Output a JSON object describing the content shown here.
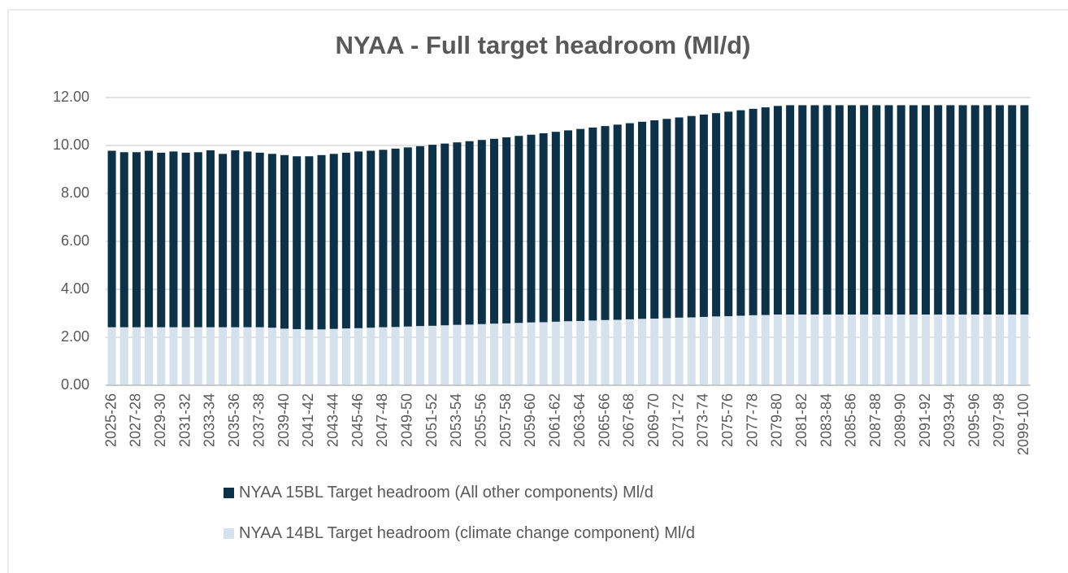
{
  "chart_data": {
    "type": "bar",
    "stacked": true,
    "title": "NYAA - Full target headroom (Ml/d)",
    "categories": [
      "2025-26",
      null,
      "2027-28",
      null,
      "2029-30",
      null,
      "2031-32",
      null,
      "2033-34",
      null,
      "2035-36",
      null,
      "2037-38",
      null,
      "2039-40",
      null,
      "2041-42",
      null,
      "2043-44",
      null,
      "2045-46",
      null,
      "2047-48",
      null,
      "2049-50",
      null,
      "2051-52",
      null,
      "2053-54",
      null,
      "2055-56",
      null,
      "2057-58",
      null,
      "2059-60",
      null,
      "2061-62",
      null,
      "2063-64",
      null,
      "2065-66",
      null,
      "2067-68",
      null,
      "2069-70",
      null,
      "2071-72",
      null,
      "2073-74",
      null,
      "2075-76",
      null,
      "2077-78",
      null,
      "2079-80",
      null,
      "2081-82",
      null,
      "2083-84",
      null,
      "2085-86",
      null,
      "2087-88",
      null,
      "2089-90",
      null,
      "2091-92",
      null,
      "2093-94",
      null,
      "2095-96",
      null,
      "2097-98",
      null,
      "2099-100"
    ],
    "series": [
      {
        "name": "NYAA 14BL Target headroom (climate change component) Ml/d",
        "color": "#d5e1ed",
        "values": [
          2.42,
          2.42,
          2.42,
          2.42,
          2.42,
          2.42,
          2.42,
          2.42,
          2.42,
          2.42,
          2.42,
          2.42,
          2.42,
          2.4,
          2.36,
          2.34,
          2.32,
          2.33,
          2.35,
          2.37,
          2.38,
          2.4,
          2.42,
          2.43,
          2.45,
          2.47,
          2.48,
          2.5,
          2.52,
          2.53,
          2.55,
          2.57,
          2.58,
          2.6,
          2.62,
          2.63,
          2.65,
          2.67,
          2.68,
          2.7,
          2.72,
          2.73,
          2.75,
          2.77,
          2.78,
          2.8,
          2.82,
          2.83,
          2.85,
          2.87,
          2.88,
          2.9,
          2.92,
          2.93,
          2.95,
          2.95,
          2.95,
          2.95,
          2.95,
          2.95,
          2.95,
          2.95,
          2.95,
          2.95,
          2.95,
          2.95,
          2.95,
          2.95,
          2.95,
          2.95,
          2.95,
          2.95,
          2.95,
          2.95,
          2.95
        ]
      },
      {
        "name": "NYAA 15BL Target headroom (All other components) Ml/d",
        "color": "#0d3247",
        "values": [
          7.36,
          7.3,
          7.3,
          7.36,
          7.28,
          7.33,
          7.28,
          7.3,
          7.38,
          7.23,
          7.38,
          7.33,
          7.28,
          7.25,
          7.24,
          7.21,
          7.23,
          7.27,
          7.3,
          7.33,
          7.37,
          7.38,
          7.4,
          7.44,
          7.47,
          7.5,
          7.55,
          7.58,
          7.61,
          7.65,
          7.68,
          7.71,
          7.76,
          7.8,
          7.83,
          7.88,
          7.92,
          7.96,
          8.01,
          8.05,
          8.09,
          8.14,
          8.18,
          8.22,
          8.27,
          8.31,
          8.35,
          8.4,
          8.44,
          8.48,
          8.53,
          8.57,
          8.61,
          8.66,
          8.7,
          8.73,
          8.73,
          8.73,
          8.73,
          8.73,
          8.73,
          8.73,
          8.73,
          8.73,
          8.73,
          8.73,
          8.73,
          8.73,
          8.73,
          8.73,
          8.73,
          8.73,
          8.73,
          8.73,
          8.73
        ]
      }
    ],
    "ylim": [
      0,
      12
    ],
    "yticks": [
      {
        "value": 0,
        "label": "0.00"
      },
      {
        "value": 2,
        "label": "2.00"
      },
      {
        "value": 4,
        "label": "4.00"
      },
      {
        "value": 6,
        "label": "6.00"
      },
      {
        "value": 8,
        "label": "8.00"
      },
      {
        "value": 10,
        "label": "10.00"
      },
      {
        "value": 12,
        "label": "12.00"
      }
    ],
    "grid": true
  }
}
